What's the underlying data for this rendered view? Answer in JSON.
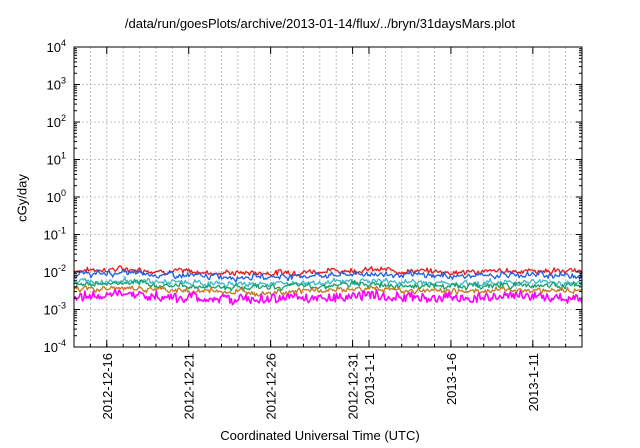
{
  "chart_data": {
    "type": "line",
    "title": "/data/run/goesPlots/archive/2013-01-14/flux/../bryn/31daysMars.plot",
    "xlabel": "Coordinated Universal Time (UTC)",
    "ylabel": "cGy/day",
    "y_scale": "log",
    "ylim": [
      0.0001,
      10000
    ],
    "y_ticks": [
      {
        "value": 0.0001,
        "base": "10",
        "exp": "-4"
      },
      {
        "value": 0.001,
        "base": "10",
        "exp": "-3"
      },
      {
        "value": 0.01,
        "base": "10",
        "exp": "-2"
      },
      {
        "value": 0.1,
        "base": "10",
        "exp": "-1"
      },
      {
        "value": 1,
        "base": "10",
        "exp": "0"
      },
      {
        "value": 10,
        "base": "10",
        "exp": "1"
      },
      {
        "value": 100,
        "base": "10",
        "exp": "2"
      },
      {
        "value": 1000,
        "base": "10",
        "exp": "3"
      },
      {
        "value": 10000,
        "base": "10",
        "exp": "4"
      }
    ],
    "xlim": [
      "2012-12-14",
      "2013-01-14"
    ],
    "x_ticks": [
      {
        "date": "2012-12-16",
        "label": "2012-12-16"
      },
      {
        "date": "2012-12-21",
        "label": "2012-12-21"
      },
      {
        "date": "2012-12-26",
        "label": "2012-12-26"
      },
      {
        "date": "2012-12-31",
        "label": "2012-12-31"
      },
      {
        "date": "2013-01-01",
        "label": "2013-1-1"
      },
      {
        "date": "2013-01-06",
        "label": "2013-1-6"
      },
      {
        "date": "2013-01-11",
        "label": "2013-1-11"
      }
    ],
    "grid": true,
    "legend": "none",
    "series": [
      {
        "color": "#e41a1c",
        "x": [
          "2012-12-14",
          "2012-12-17",
          "2012-12-20",
          "2012-12-23",
          "2012-12-26",
          "2012-12-29",
          "2013-01-01",
          "2013-01-04",
          "2013-01-07",
          "2013-01-10",
          "2013-01-14"
        ],
        "y": [
          0.011,
          0.012,
          0.0105,
          0.0095,
          0.0095,
          0.0105,
          0.0115,
          0.0105,
          0.0098,
          0.0108,
          0.0105
        ]
      },
      {
        "color": "#1f5fe0",
        "x": [
          "2012-12-14",
          "2012-12-17",
          "2012-12-20",
          "2012-12-23",
          "2012-12-26",
          "2012-12-29",
          "2013-01-01",
          "2013-01-04",
          "2013-01-07",
          "2013-01-10",
          "2013-01-14"
        ],
        "y": [
          0.0085,
          0.0095,
          0.0082,
          0.0075,
          0.0075,
          0.0082,
          0.009,
          0.0082,
          0.0077,
          0.0085,
          0.0082
        ]
      },
      {
        "color": "#40b8c8",
        "x": [
          "2012-12-14",
          "2012-12-17",
          "2012-12-20",
          "2012-12-23",
          "2012-12-26",
          "2012-12-29",
          "2013-01-01",
          "2013-01-04",
          "2013-01-07",
          "2013-01-10",
          "2013-01-14"
        ],
        "y": [
          0.0055,
          0.006,
          0.0052,
          0.0048,
          0.0048,
          0.0052,
          0.0058,
          0.0052,
          0.0049,
          0.0055,
          0.0052
        ]
      },
      {
        "color": "#14a06e",
        "x": [
          "2012-12-14",
          "2012-12-17",
          "2012-12-20",
          "2012-12-23",
          "2012-12-26",
          "2012-12-29",
          "2013-01-01",
          "2013-01-04",
          "2013-01-07",
          "2013-01-10",
          "2013-01-14"
        ],
        "y": [
          0.0045,
          0.005,
          0.0043,
          0.004,
          0.004,
          0.0043,
          0.0048,
          0.0043,
          0.0041,
          0.0046,
          0.0043
        ]
      },
      {
        "color": "#c07a20",
        "x": [
          "2012-12-14",
          "2012-12-17",
          "2012-12-20",
          "2012-12-23",
          "2012-12-26",
          "2012-12-29",
          "2013-01-01",
          "2013-01-04",
          "2013-01-07",
          "2013-01-10",
          "2013-01-14"
        ],
        "y": [
          0.0034,
          0.0037,
          0.0032,
          0.003,
          0.003,
          0.0032,
          0.0036,
          0.0032,
          0.0031,
          0.0034,
          0.0032
        ]
      },
      {
        "color": "#ff00ff",
        "x": [
          "2012-12-14",
          "2012-12-17",
          "2012-12-20",
          "2012-12-23",
          "2012-12-26",
          "2012-12-29",
          "2013-01-01",
          "2013-01-04",
          "2013-01-07",
          "2013-01-10",
          "2013-01-14"
        ],
        "y": [
          0.0022,
          0.0026,
          0.0021,
          0.0019,
          0.0019,
          0.0021,
          0.0024,
          0.0021,
          0.002,
          0.0023,
          0.0021
        ]
      }
    ]
  }
}
